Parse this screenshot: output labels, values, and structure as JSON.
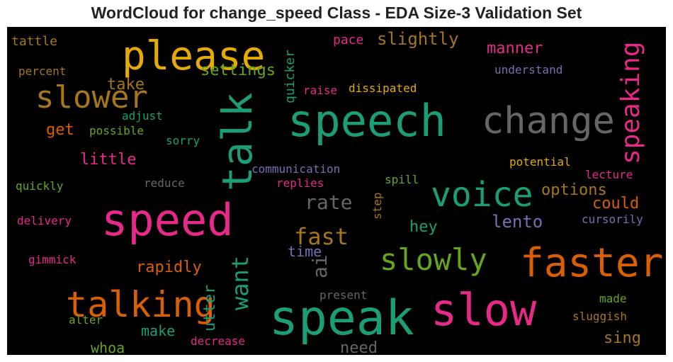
{
  "chart_data": {
    "type": "wordcloud",
    "title": "WordCloud for change_speed Class - EDA Size-3 Validation Set",
    "background": "#000000",
    "words": [
      {
        "text": "please",
        "color": "#e6ab02"
      },
      {
        "text": "speech",
        "color": "#1b9e77"
      },
      {
        "text": "change",
        "color": "#666666"
      },
      {
        "text": "speaking",
        "color": "#e7298a"
      },
      {
        "text": "slower",
        "color": "#a6761d"
      },
      {
        "text": "talk",
        "color": "#1b9e77"
      },
      {
        "text": "speed",
        "color": "#e7298a"
      },
      {
        "text": "voice",
        "color": "#1b9e77"
      },
      {
        "text": "faster",
        "color": "#d95f02"
      },
      {
        "text": "slowly",
        "color": "#66a61e"
      },
      {
        "text": "slow",
        "color": "#e7298a"
      },
      {
        "text": "speak",
        "color": "#1b9e77"
      },
      {
        "text": "talking",
        "color": "#d95f02"
      },
      {
        "text": "fast",
        "color": "#a6761d"
      },
      {
        "text": "rate",
        "color": "#666666"
      },
      {
        "text": "want",
        "color": "#1b9e77"
      },
      {
        "text": "slightly",
        "color": "#a6761d"
      },
      {
        "text": "settings",
        "color": "#66a61e"
      },
      {
        "text": "manner",
        "color": "#e7298a"
      },
      {
        "text": "options",
        "color": "#a6761d"
      },
      {
        "text": "could",
        "color": "#d95f02"
      },
      {
        "text": "lento",
        "color": "#7570b3"
      },
      {
        "text": "hey",
        "color": "#1b9e77"
      },
      {
        "text": "ai",
        "color": "#666666"
      },
      {
        "text": "rapidly",
        "color": "#d95f02"
      },
      {
        "text": "little",
        "color": "#e7298a"
      },
      {
        "text": "take",
        "color": "#a6761d"
      },
      {
        "text": "get",
        "color": "#d95f02"
      },
      {
        "text": "time",
        "color": "#7570b3"
      },
      {
        "text": "utter",
        "color": "#1b9e77"
      },
      {
        "text": "make",
        "color": "#1b9e77"
      },
      {
        "text": "whoa",
        "color": "#66a61e"
      },
      {
        "text": "need",
        "color": "#666666"
      },
      {
        "text": "sing",
        "color": "#a6761d"
      },
      {
        "text": "quicker",
        "color": "#1b9e77"
      },
      {
        "text": "pace",
        "color": "#e7298a"
      },
      {
        "text": "tattle",
        "color": "#a6761d"
      },
      {
        "text": "percent",
        "color": "#a6761d"
      },
      {
        "text": "understand",
        "color": "#7570b3"
      },
      {
        "text": "raise",
        "color": "#e7298a"
      },
      {
        "text": "dissipated",
        "color": "#e6ab02"
      },
      {
        "text": "adjust",
        "color": "#1b9e77"
      },
      {
        "text": "possible",
        "color": "#66a61e"
      },
      {
        "text": "sorry",
        "color": "#1b9e77"
      },
      {
        "text": "communication",
        "color": "#7570b3"
      },
      {
        "text": "potential",
        "color": "#e6ab02"
      },
      {
        "text": "lecture",
        "color": "#e7298a"
      },
      {
        "text": "reduce",
        "color": "#666666"
      },
      {
        "text": "replies",
        "color": "#e7298a"
      },
      {
        "text": "spill",
        "color": "#66a61e"
      },
      {
        "text": "quickly",
        "color": "#66a61e"
      },
      {
        "text": "step",
        "color": "#a6761d"
      },
      {
        "text": "cursorily",
        "color": "#7570b3"
      },
      {
        "text": "delivery",
        "color": "#e7298a"
      },
      {
        "text": "gimmick",
        "color": "#e7298a"
      },
      {
        "text": "present",
        "color": "#666666"
      },
      {
        "text": "made",
        "color": "#66a61e"
      },
      {
        "text": "alter",
        "color": "#66a61e"
      },
      {
        "text": "sluggish",
        "color": "#a6761d"
      },
      {
        "text": "decrease",
        "color": "#e7298a"
      }
    ]
  }
}
